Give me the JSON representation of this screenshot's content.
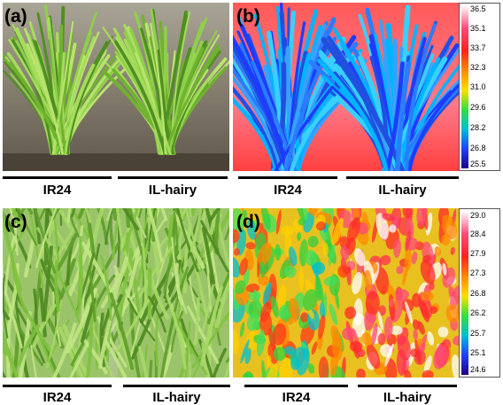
{
  "panels": [
    {
      "id": "a",
      "label": "(a)",
      "groups": [
        "IR24",
        "IL-hairy"
      ]
    },
    {
      "id": "b",
      "label": "(b)",
      "groups": [
        "IR24",
        "IL-hairy"
      ],
      "scale": [
        "36.5",
        "35.1",
        "33.7",
        "32.3",
        "31.0",
        "29.6",
        "28.2",
        "26.8",
        "25.5"
      ]
    },
    {
      "id": "c",
      "label": "(c)",
      "groups": [
        "IR24",
        "IL-hairy"
      ]
    },
    {
      "id": "d",
      "label": "(d)",
      "groups": [
        "IR24",
        "IL-hairy"
      ],
      "scale": [
        "29.0",
        "28.4",
        "27.9",
        "27.3",
        "26.8",
        "26.2",
        "25.7",
        "25.1",
        "24.6"
      ]
    }
  ],
  "colors": {
    "foliage": "#7fbf3a",
    "foliage_dark": "#3f7a1c",
    "water": "#6d6558",
    "thermal_hot": "#ff3c2a",
    "thermal_cold": "#1e3cff"
  }
}
